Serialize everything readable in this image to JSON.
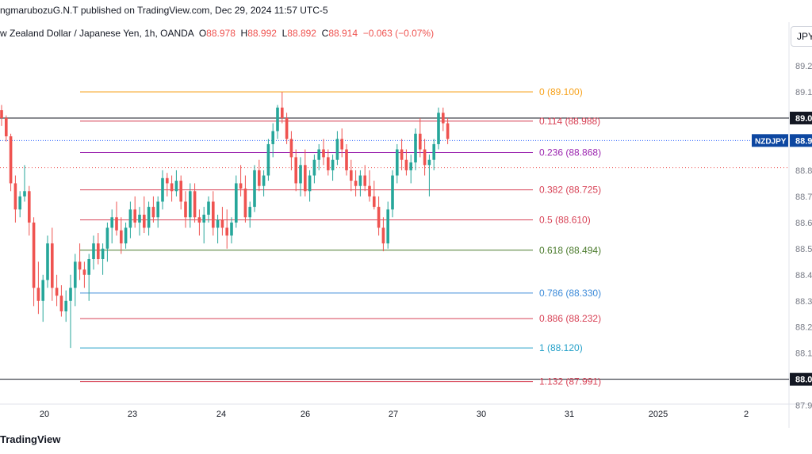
{
  "header": {
    "published": "ngmarubozuG.N.T published on TradingView.com, Dec 29, 2024 11:57 UTC-5"
  },
  "symbol_line": {
    "name": "w Zealand Dollar / Japanese Yen, 1h, OANDA",
    "open_key": "O",
    "open": "88.978",
    "high_key": "H",
    "high": "88.992",
    "low_key": "L",
    "low": "88.892",
    "close_key": "C",
    "close": "88.914",
    "change": "−0.063 (−0.07%)"
  },
  "currency_button": "JPY",
  "footer": {
    "brand": "TradingView"
  },
  "colors": {
    "up": "#26a69a",
    "down": "#ef5350",
    "text": "#131722",
    "axis": "#787b86"
  },
  "chart_data": {
    "type": "candlestick",
    "symbol": "NZDJPY",
    "x_tick_labels": [
      "20",
      "23",
      "24",
      "26",
      "27",
      "30",
      "31",
      "2025",
      "2"
    ],
    "y_tick_labels": [
      "89.2",
      "89.1",
      "89.0",
      "88.8",
      "88.7",
      "88.6",
      "88.5",
      "88.4",
      "88.3",
      "88.2",
      "88.1",
      "88.0",
      "87.9"
    ],
    "ylim": [
      87.905,
      89.285
    ],
    "last_price_label": {
      "name": "NZDJPY",
      "value": "88.9"
    },
    "marked_levels": [
      {
        "value": 89.0,
        "label": "89.0"
      },
      {
        "value": 88.0,
        "label": "88.0"
      }
    ],
    "fib_levels": [
      {
        "ratio": "0",
        "price": 89.1,
        "label": "0 (89.100)",
        "color": "#f7a21b"
      },
      {
        "ratio": "0.114",
        "price": 88.988,
        "label": "0.114 (88.988)",
        "color": "#d84256"
      },
      {
        "ratio": "0.236",
        "price": 88.868,
        "label": "0.236 (88.868)",
        "color": "#9c27b0"
      },
      {
        "ratio": "0.382",
        "price": 88.725,
        "label": "0.382 (88.725)",
        "color": "#d84256"
      },
      {
        "ratio": "0.5",
        "price": 88.61,
        "label": "0.5 (88.610)",
        "color": "#d84256"
      },
      {
        "ratio": "0.618",
        "price": 88.494,
        "label": "0.618 (88.494)",
        "color": "#4a7a2b"
      },
      {
        "ratio": "0.786",
        "price": 88.33,
        "label": "0.786 (88.330)",
        "color": "#3d8bd9"
      },
      {
        "ratio": "0.886",
        "price": 88.232,
        "label": "0.886 (88.232)",
        "color": "#d84256"
      },
      {
        "ratio": "1",
        "price": 88.12,
        "label": "1 (88.120)",
        "color": "#26a1c9"
      },
      {
        "ratio": "1.132",
        "price": 87.991,
        "label": "1.132 (87.991)",
        "color": "#d84256"
      }
    ],
    "candles": [
      [
        89.03,
        89.05,
        88.97,
        89.0
      ],
      [
        89.0,
        89.01,
        88.91,
        88.93
      ],
      [
        88.93,
        88.94,
        88.72,
        88.75
      ],
      [
        88.75,
        88.78,
        88.6,
        88.65
      ],
      [
        88.65,
        88.72,
        88.62,
        88.7
      ],
      [
        88.7,
        88.82,
        88.68,
        88.72
      ],
      [
        88.72,
        88.74,
        88.55,
        88.6
      ],
      [
        88.6,
        88.62,
        88.28,
        88.35
      ],
      [
        88.35,
        88.45,
        88.25,
        88.3
      ],
      [
        88.3,
        88.4,
        88.22,
        88.38
      ],
      [
        88.38,
        88.55,
        88.35,
        88.52
      ],
      [
        88.52,
        88.58,
        88.3,
        88.35
      ],
      [
        88.35,
        88.4,
        88.28,
        88.32
      ],
      [
        88.32,
        88.36,
        88.24,
        88.26
      ],
      [
        88.26,
        88.34,
        88.22,
        88.3
      ],
      [
        88.3,
        88.4,
        88.12,
        88.35
      ],
      [
        88.35,
        88.48,
        88.28,
        88.45
      ],
      [
        88.45,
        88.52,
        88.38,
        88.42
      ],
      [
        88.42,
        88.45,
        88.35,
        88.4
      ],
      [
        88.4,
        88.48,
        88.3,
        88.46
      ],
      [
        88.46,
        88.55,
        88.42,
        88.52
      ],
      [
        88.52,
        88.56,
        88.44,
        88.46
      ],
      [
        88.46,
        88.52,
        88.4,
        88.5
      ],
      [
        88.5,
        88.6,
        88.45,
        88.58
      ],
      [
        88.58,
        88.65,
        88.52,
        88.62
      ],
      [
        88.62,
        88.68,
        88.55,
        88.57
      ],
      [
        88.57,
        88.62,
        88.48,
        88.52
      ],
      [
        88.52,
        88.6,
        88.5,
        88.58
      ],
      [
        88.58,
        88.68,
        88.54,
        88.65
      ],
      [
        88.65,
        88.7,
        88.58,
        88.6
      ],
      [
        88.6,
        88.66,
        88.55,
        88.63
      ],
      [
        88.63,
        88.7,
        88.56,
        88.58
      ],
      [
        88.58,
        88.68,
        88.55,
        88.66
      ],
      [
        88.66,
        88.7,
        88.6,
        88.62
      ],
      [
        88.62,
        88.7,
        88.58,
        88.68
      ],
      [
        88.68,
        88.8,
        88.65,
        88.77
      ],
      [
        88.77,
        88.79,
        88.7,
        88.75
      ],
      [
        88.75,
        88.78,
        88.68,
        88.72
      ],
      [
        88.72,
        88.8,
        88.7,
        88.76
      ],
      [
        88.76,
        88.78,
        88.65,
        88.68
      ],
      [
        88.68,
        88.72,
        88.58,
        88.62
      ],
      [
        88.62,
        88.75,
        88.58,
        88.72
      ],
      [
        88.72,
        88.75,
        88.6,
        88.62
      ],
      [
        88.62,
        88.65,
        88.55,
        88.6
      ],
      [
        88.6,
        88.66,
        88.52,
        88.63
      ],
      [
        88.63,
        88.7,
        88.6,
        88.68
      ],
      [
        88.68,
        88.72,
        88.55,
        88.58
      ],
      [
        88.58,
        88.63,
        88.52,
        88.61
      ],
      [
        88.61,
        88.66,
        88.55,
        88.58
      ],
      [
        88.58,
        88.65,
        88.5,
        88.55
      ],
      [
        88.55,
        88.62,
        88.52,
        88.6
      ],
      [
        88.6,
        88.78,
        88.58,
        88.75
      ],
      [
        88.75,
        88.82,
        88.7,
        88.73
      ],
      [
        88.73,
        88.78,
        88.6,
        88.62
      ],
      [
        88.62,
        88.68,
        88.58,
        88.66
      ],
      [
        88.66,
        88.82,
        88.64,
        88.8
      ],
      [
        88.8,
        88.84,
        88.72,
        88.74
      ],
      [
        88.74,
        88.8,
        88.7,
        88.78
      ],
      [
        88.78,
        88.92,
        88.76,
        88.9
      ],
      [
        88.9,
        88.98,
        88.85,
        88.95
      ],
      [
        88.95,
        89.05,
        88.92,
        89.04
      ],
      [
        89.04,
        89.1,
        88.98,
        89.0
      ],
      [
        89.0,
        89.02,
        88.9,
        88.92
      ],
      [
        88.92,
        88.95,
        88.8,
        88.85
      ],
      [
        88.85,
        88.88,
        88.72,
        88.75
      ],
      [
        88.75,
        88.85,
        88.7,
        88.82
      ],
      [
        88.82,
        88.88,
        88.7,
        88.72
      ],
      [
        88.72,
        88.8,
        88.68,
        88.78
      ],
      [
        88.78,
        88.86,
        88.75,
        88.84
      ],
      [
        88.84,
        88.9,
        88.8,
        88.88
      ],
      [
        88.88,
        88.92,
        88.82,
        88.85
      ],
      [
        88.85,
        88.88,
        88.78,
        88.8
      ],
      [
        88.8,
        88.86,
        88.76,
        88.84
      ],
      [
        88.84,
        88.95,
        88.82,
        88.92
      ],
      [
        88.92,
        88.96,
        88.85,
        88.88
      ],
      [
        88.88,
        88.9,
        88.78,
        88.8
      ],
      [
        88.8,
        88.84,
        88.72,
        88.76
      ],
      [
        88.76,
        88.8,
        88.7,
        88.74
      ],
      [
        88.74,
        88.8,
        88.7,
        88.78
      ],
      [
        88.78,
        88.82,
        88.72,
        88.74
      ],
      [
        88.74,
        88.8,
        88.68,
        88.7
      ],
      [
        88.7,
        88.76,
        88.65,
        88.66
      ],
      [
        88.66,
        88.7,
        88.55,
        88.58
      ],
      [
        88.58,
        88.62,
        88.49,
        88.52
      ],
      [
        88.52,
        88.68,
        88.5,
        88.65
      ],
      [
        88.65,
        88.8,
        88.62,
        88.78
      ],
      [
        88.78,
        88.9,
        88.75,
        88.88
      ],
      [
        88.88,
        88.92,
        88.8,
        88.84
      ],
      [
        88.84,
        88.88,
        88.78,
        88.8
      ],
      [
        88.8,
        88.86,
        88.75,
        88.83
      ],
      [
        88.83,
        88.96,
        88.8,
        88.94
      ],
      [
        88.94,
        89.0,
        88.85,
        88.88
      ],
      [
        88.88,
        88.92,
        88.78,
        88.82
      ],
      [
        88.82,
        88.86,
        88.7,
        88.84
      ],
      [
        88.84,
        88.92,
        88.8,
        88.9
      ],
      [
        88.9,
        89.04,
        88.88,
        89.02
      ],
      [
        89.02,
        89.04,
        88.95,
        88.98
      ],
      [
        88.98,
        89.0,
        88.9,
        88.92
      ]
    ]
  }
}
